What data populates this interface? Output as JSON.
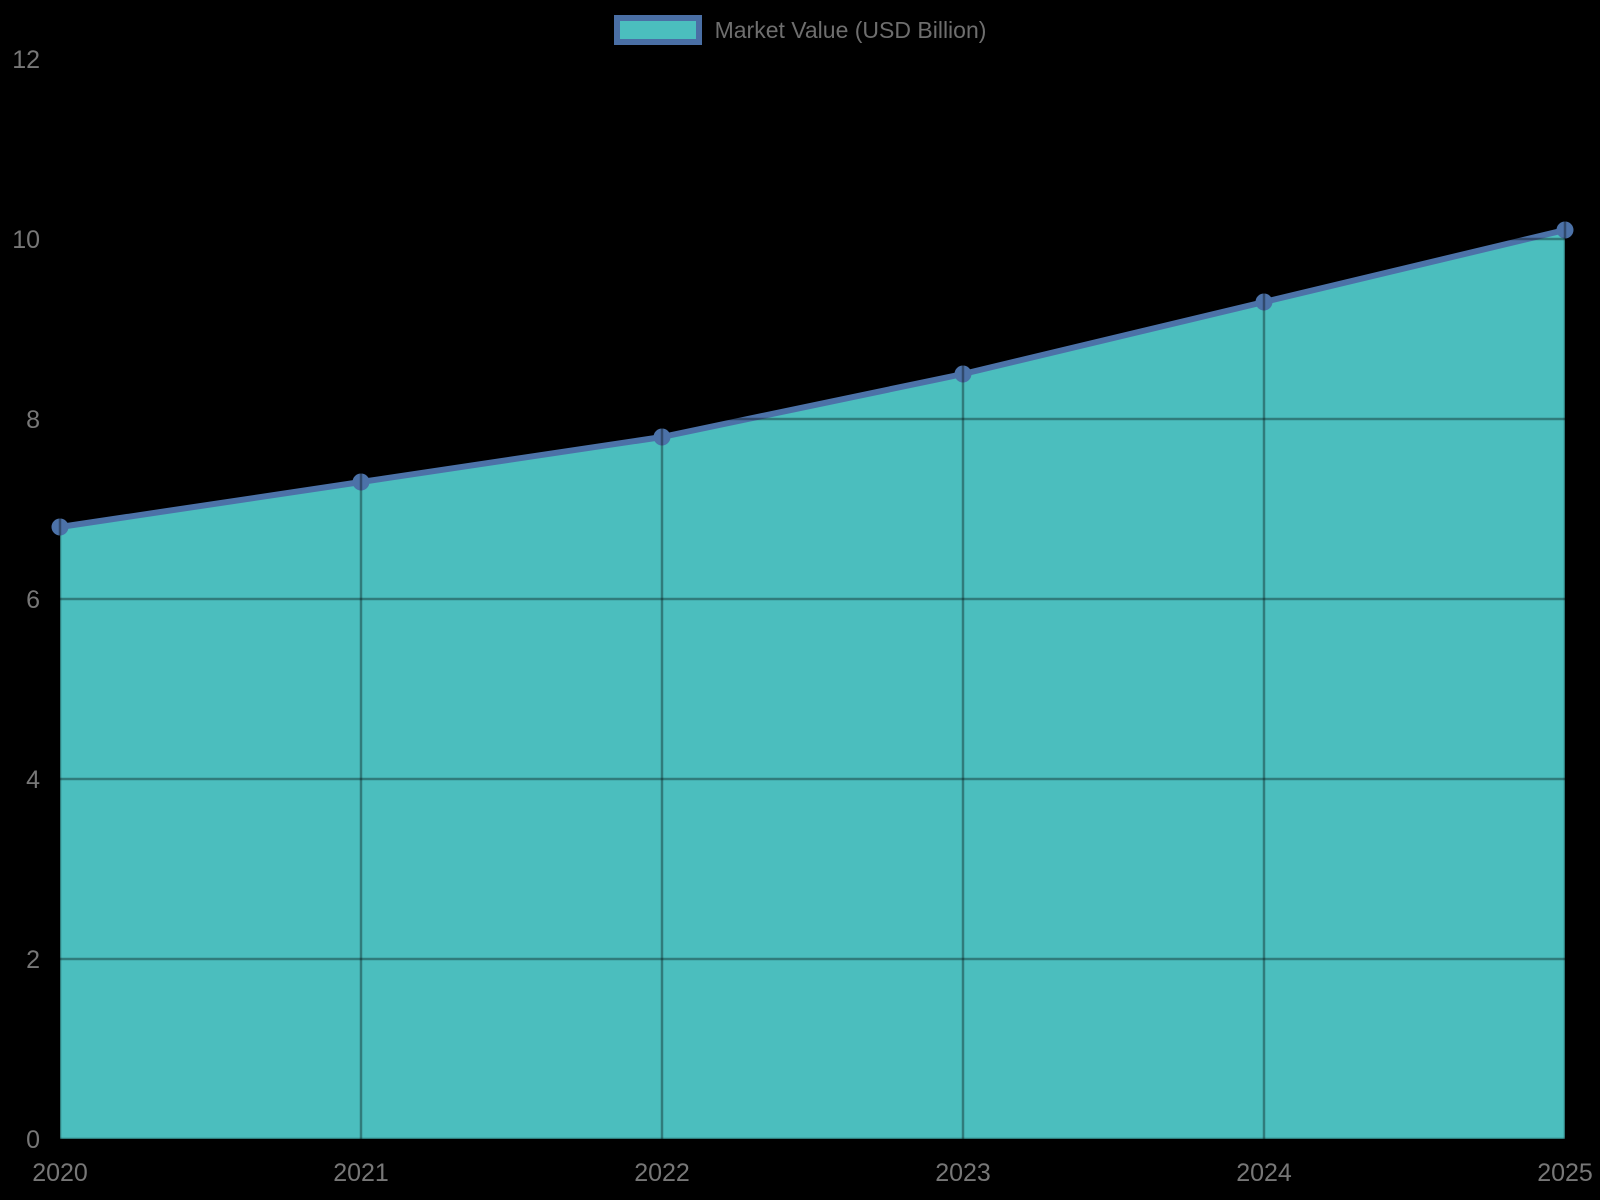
{
  "chart_data": {
    "type": "area",
    "title": "",
    "xlabel": "",
    "ylabel": "",
    "categories": [
      "2020",
      "2021",
      "2022",
      "2023",
      "2024",
      "2025"
    ],
    "series": [
      {
        "name": "Market Value (USD Billion)",
        "values": [
          6.8,
          7.3,
          7.8,
          8.5,
          9.3,
          10.1
        ]
      }
    ],
    "ylim": [
      0,
      12
    ],
    "yticks": [
      0,
      2,
      4,
      6,
      8,
      10,
      12
    ],
    "grid": true,
    "legend_position": "top-center",
    "colors": {
      "background": "#000000",
      "area_fill": "#4BBEBE",
      "line": "#4C72A8",
      "marker": "#4C72A8",
      "legend_border": "#4A6FA5",
      "legend_text": "#6E6E6E",
      "tick_text": "#777777",
      "gridline": "rgba(0,0,0,0.35)"
    }
  }
}
